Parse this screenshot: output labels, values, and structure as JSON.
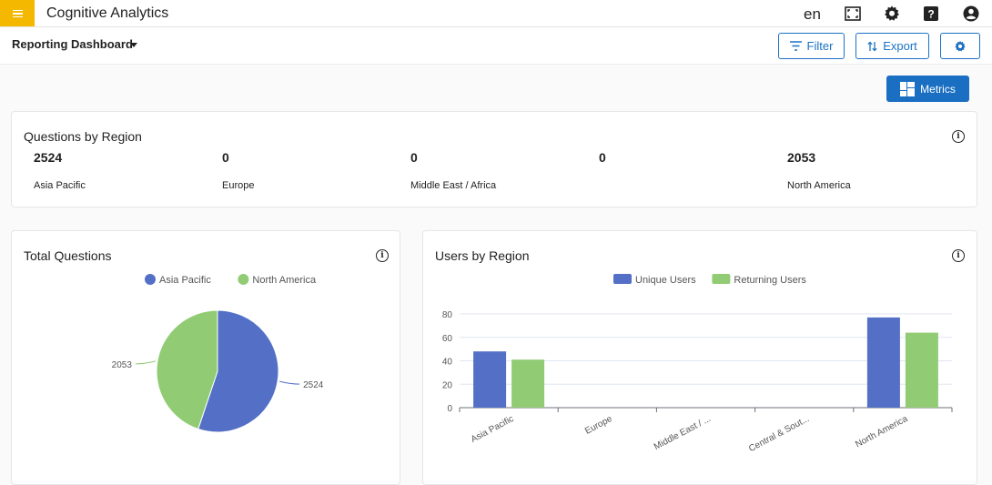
{
  "header": {
    "app_title": "Cognitive Analytics",
    "language": "en",
    "icons": [
      "menu-icon",
      "fullscreen-icon",
      "gear-icon",
      "help-icon",
      "account-icon"
    ]
  },
  "toolbar": {
    "dashboard_name": "Reporting Dashboard",
    "filter_label": "Filter",
    "export_label": "Export",
    "metrics_label": "Metrics"
  },
  "colors": {
    "accent": "#1a6fc2",
    "menu_bg": "#f5b800",
    "blue_series": "#5470c6",
    "green_series": "#91cc75"
  },
  "questions_by_region": {
    "title": "Questions by Region",
    "stats": [
      {
        "value": "2524",
        "label": "Asia Pacific"
      },
      {
        "value": "0",
        "label": "Europe"
      },
      {
        "value": "0",
        "label": "Middle East / Africa"
      },
      {
        "value": "0",
        "label": ""
      },
      {
        "value": "2053",
        "label": "North America"
      }
    ]
  },
  "chart_data": [
    {
      "type": "pie",
      "title": "Total Questions",
      "legend": [
        "Asia Pacific",
        "North America"
      ],
      "legend_position": "top-center",
      "slices": [
        {
          "name": "Asia Pacific",
          "value": 2524,
          "color": "#5470c6",
          "label": "2524"
        },
        {
          "name": "North America",
          "value": 2053,
          "color": "#91cc75",
          "label": "2053"
        }
      ]
    },
    {
      "type": "bar",
      "title": "Users by Region",
      "legend_position": "top-center",
      "categories": [
        "Asia Pacific",
        "Europe",
        "Middle East / ...",
        "Central & Sout...",
        "North America"
      ],
      "series": [
        {
          "name": "Unique Users",
          "color": "#5470c6",
          "values": [
            48,
            0,
            0,
            0,
            77
          ]
        },
        {
          "name": "Returning Users",
          "color": "#91cc75",
          "values": [
            41,
            0,
            0,
            0,
            64
          ]
        }
      ],
      "ylim": [
        0,
        80
      ],
      "yticks": [
        0,
        20,
        40,
        60,
        80
      ],
      "grid": true
    }
  ]
}
